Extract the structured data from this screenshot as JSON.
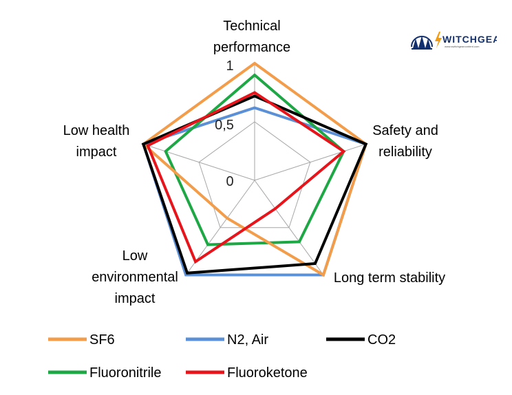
{
  "logo": {
    "text": "WITCHGEAR",
    "subtext": "www.switchgearcontent.com"
  },
  "chart_data": {
    "type": "radar",
    "axes": [
      "Technical performance",
      "Safety and reliability",
      "Long term stability",
      "Low environmental impact",
      "Low health impact"
    ],
    "axis_labels": [
      [
        "Technical",
        "performance"
      ],
      [
        "Safety and",
        "reliability"
      ],
      [
        "Long term stability"
      ],
      [
        "Low",
        "environmental",
        "impact"
      ],
      [
        "Low health",
        "impact"
      ]
    ],
    "ticks": [
      "0",
      "0,5",
      "1"
    ],
    "tick_values": [
      0,
      0.5,
      1
    ],
    "range": [
      0,
      1
    ],
    "grid": true,
    "legend_position": "bottom",
    "series": [
      {
        "name": "SF6",
        "color": "#f39c49",
        "values": [
          1.0,
          1.0,
          1.0,
          0.4,
          1.0
        ]
      },
      {
        "name": "N2, Air",
        "color": "#5b8fd6",
        "values": [
          0.62,
          1.0,
          1.0,
          1.0,
          1.0
        ]
      },
      {
        "name": "CO2",
        "color": "#000000",
        "values": [
          0.72,
          1.0,
          0.88,
          0.98,
          1.0
        ]
      },
      {
        "name": "Fluoronitrile",
        "color": "#1ea845",
        "values": [
          0.9,
          0.8,
          0.65,
          0.68,
          0.8
        ]
      },
      {
        "name": "Fluoroketone",
        "color": "#e8141b",
        "values": [
          0.75,
          0.8,
          0.3,
          0.86,
          0.96
        ]
      }
    ]
  }
}
